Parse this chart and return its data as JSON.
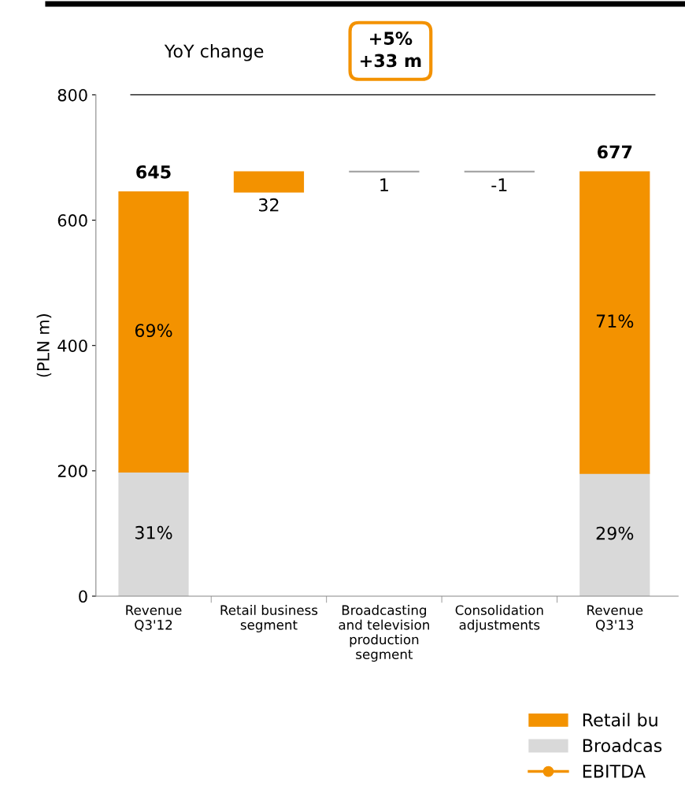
{
  "chart_data": {
    "type": "bar",
    "stacked": true,
    "ylabel": "(PLN m)",
    "categories": [
      "Revenue\nQ3'12",
      "Retail business\nsegment",
      "Broadcasting\nand television\nproduction\nsegment",
      "Consolidation\nadjustments",
      "Revenue\nQ3'13"
    ],
    "ylim": [
      0,
      800
    ],
    "yticks": [
      0,
      200,
      400,
      600,
      800
    ],
    "grid": false,
    "legend": "bottom right",
    "series": [
      {
        "name": "Broadcas",
        "color": "#d9d9d9",
        "values": [
          198,
          null,
          null,
          null,
          196
        ],
        "value_labels": [
          null,
          null,
          null,
          null,
          null
        ]
      },
      {
        "name": "Retail bu",
        "color": "#f39200",
        "colors": [
          "#f39200",
          "#f39200",
          "#a6a6a6",
          "#a6a6a6",
          "#f39200"
        ],
        "values": [
          447,
          32,
          1,
          -1,
          481
        ],
        "base": [
          null,
          645,
          677,
          678,
          null
        ],
        "value_labels": [
          null,
          "32",
          "1",
          "-1",
          null
        ]
      },
      {
        "type": "line",
        "name": "EBITDA",
        "color": "#f39200",
        "marker": "circle",
        "values": [
          null,
          null,
          null,
          null,
          null
        ]
      }
    ],
    "totals": [
      "645",
      null,
      null,
      null,
      "677"
    ],
    "ref_lines": [
      {
        "axis": "y",
        "value": 800,
        "color": "#000000"
      }
    ],
    "annotations": [
      "YoY change",
      "+5%\n+33 m",
      "31%",
      "29%",
      "69%",
      "71%"
    ]
  }
}
